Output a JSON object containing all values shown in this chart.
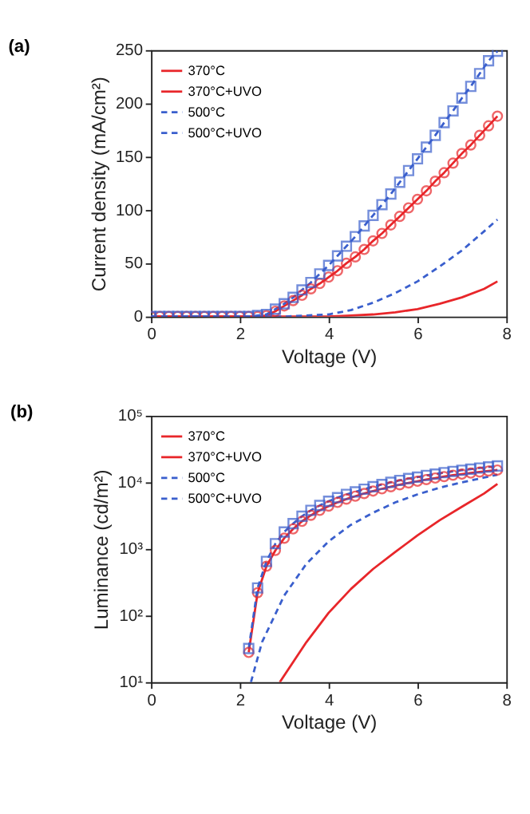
{
  "chart_data": [
    {
      "type": "line",
      "title": "(a)",
      "xlabel": "Voltage (V)",
      "ylabel": "Current density (mA/cm²)",
      "xlim": [
        0,
        8
      ],
      "xticks": [
        0,
        2,
        4,
        6,
        8
      ],
      "ylim": [
        0,
        250
      ],
      "yticks": [
        0,
        50,
        100,
        150,
        200,
        250
      ],
      "grid": false,
      "legend": "top left",
      "series": [
        {
          "name": "370°C",
          "color": "#e8262a",
          "line_style": "solid",
          "marker": "none",
          "x": [
            0,
            4.0,
            4.5,
            5.0,
            5.5,
            6.0,
            6.5,
            7.0,
            7.5,
            7.8
          ],
          "values": [
            0,
            0,
            1,
            2,
            4,
            7,
            12,
            18,
            26,
            33
          ]
        },
        {
          "name": "370°C+UVO",
          "color": "#e8262a",
          "line_style": "solid",
          "marker": "circle",
          "x": [
            0,
            0.2,
            0.4,
            0.6,
            0.8,
            1.0,
            1.2,
            1.4,
            1.6,
            1.8,
            2.0,
            2.2,
            2.4,
            2.6,
            2.8,
            3.0,
            3.2,
            3.4,
            3.6,
            3.8,
            4.0,
            4.2,
            4.4,
            4.6,
            4.8,
            5.0,
            5.2,
            5.4,
            5.6,
            5.8,
            6.0,
            6.2,
            6.4,
            6.6,
            6.8,
            7.0,
            7.2,
            7.4,
            7.6,
            7.8
          ],
          "values": [
            0,
            0,
            0,
            0,
            0,
            0,
            0,
            0,
            0,
            0,
            0,
            0,
            0,
            1,
            5,
            10,
            15,
            20,
            26,
            31,
            37,
            43,
            50,
            56,
            63,
            71,
            78,
            86,
            94,
            102,
            110,
            118,
            127,
            135,
            144,
            153,
            161,
            170,
            179,
            188
          ]
        },
        {
          "name": "500°C",
          "color": "#3a5fcd",
          "line_style": "dashed",
          "marker": "none",
          "x": [
            0,
            3.0,
            3.5,
            4.0,
            4.5,
            5.0,
            5.5,
            6.0,
            6.5,
            7.0,
            7.5,
            7.8
          ],
          "values": [
            0,
            0,
            1,
            2,
            6,
            13,
            22,
            33,
            47,
            62,
            80,
            91
          ]
        },
        {
          "name": "500°C+UVO",
          "color": "#3a5fcd",
          "line_style": "dashed",
          "marker": "square",
          "x": [
            0,
            0.2,
            0.4,
            0.6,
            0.8,
            1.0,
            1.2,
            1.4,
            1.6,
            1.8,
            2.0,
            2.2,
            2.4,
            2.6,
            2.8,
            3.0,
            3.2,
            3.4,
            3.6,
            3.8,
            4.0,
            4.2,
            4.4,
            4.6,
            4.8,
            5.0,
            5.2,
            5.4,
            5.6,
            5.8,
            6.0,
            6.2,
            6.4,
            6.6,
            6.8,
            7.0,
            7.2,
            7.4,
            7.6,
            7.8
          ],
          "values": [
            0,
            0,
            0,
            0,
            0,
            0,
            0,
            0,
            0,
            0,
            0,
            0,
            1,
            2,
            7,
            12,
            18,
            25,
            32,
            40,
            48,
            57,
            66,
            75,
            85,
            95,
            105,
            115,
            126,
            137,
            148,
            159,
            170,
            182,
            193,
            205,
            216,
            228,
            240,
            249
          ]
        }
      ]
    },
    {
      "type": "line",
      "title": "(b)",
      "xlabel": "Voltage (V)",
      "ylabel": "Luminance (cd/m²)",
      "log": "y",
      "xlim": [
        0,
        8
      ],
      "xticks": [
        0,
        2,
        4,
        6,
        8
      ],
      "ylim": [
        10,
        100000
      ],
      "yticks": [
        {
          "value": 10,
          "label": "10¹"
        },
        {
          "value": 100,
          "label": "10²"
        },
        {
          "value": 1000,
          "label": "10³"
        },
        {
          "value": 10000,
          "label": "10⁴"
        },
        {
          "value": 100000,
          "label": "10⁵"
        }
      ],
      "grid": false,
      "legend": "top left",
      "series": [
        {
          "name": "370°C",
          "color": "#e8262a",
          "line_style": "solid",
          "marker": "none",
          "x": [
            2.9,
            3.5,
            4.0,
            4.5,
            5.0,
            5.5,
            6.0,
            6.5,
            7.0,
            7.5,
            7.8
          ],
          "values": [
            10,
            40,
            110,
            250,
            500,
            900,
            1600,
            2700,
            4300,
            6800,
            9500
          ]
        },
        {
          "name": "370°C+UVO",
          "color": "#e8262a",
          "line_style": "solid",
          "marker": "circle",
          "x": [
            2.2,
            2.4,
            2.6,
            2.8,
            3.0,
            3.2,
            3.4,
            3.6,
            3.8,
            4.0,
            4.2,
            4.4,
            4.6,
            4.8,
            5.0,
            5.2,
            5.4,
            5.6,
            5.8,
            6.0,
            6.2,
            6.4,
            6.6,
            6.8,
            7.0,
            7.2,
            7.4,
            7.6,
            7.8
          ],
          "values": [
            28,
            220,
            550,
            950,
            1450,
            2000,
            2600,
            3200,
            3800,
            4400,
            5000,
            5600,
            6200,
            6800,
            7400,
            8000,
            8600,
            9200,
            9800,
            10400,
            11000,
            11600,
            12200,
            12800,
            13300,
            13800,
            14300,
            14800,
            15300
          ]
        },
        {
          "name": "500°C",
          "color": "#3a5fcd",
          "line_style": "dashed",
          "marker": "none",
          "x": [
            2.25,
            2.5,
            3.0,
            3.5,
            4.0,
            4.5,
            5.0,
            5.5,
            6.0,
            6.5,
            7.0,
            7.5,
            7.8
          ],
          "values": [
            10,
            40,
            200,
            600,
            1300,
            2300,
            3500,
            5000,
            6600,
            8300,
            10000,
            11800,
            13000
          ]
        },
        {
          "name": "500°C+UVO",
          "color": "#3a5fcd",
          "line_style": "dashed",
          "marker": "square",
          "x": [
            2.2,
            2.4,
            2.6,
            2.8,
            3.0,
            3.2,
            3.4,
            3.6,
            3.8,
            4.0,
            4.2,
            4.4,
            4.6,
            4.8,
            5.0,
            5.2,
            5.4,
            5.6,
            5.8,
            6.0,
            6.2,
            6.4,
            6.6,
            6.8,
            7.0,
            7.2,
            7.4,
            7.6,
            7.8
          ],
          "values": [
            32,
            260,
            650,
            1200,
            1800,
            2400,
            3100,
            3800,
            4500,
            5200,
            5900,
            6600,
            7200,
            7900,
            8600,
            9300,
            10000,
            10700,
            11400,
            12000,
            12700,
            13300,
            14000,
            14600,
            15200,
            15800,
            16400,
            17000,
            17600
          ]
        }
      ]
    }
  ]
}
